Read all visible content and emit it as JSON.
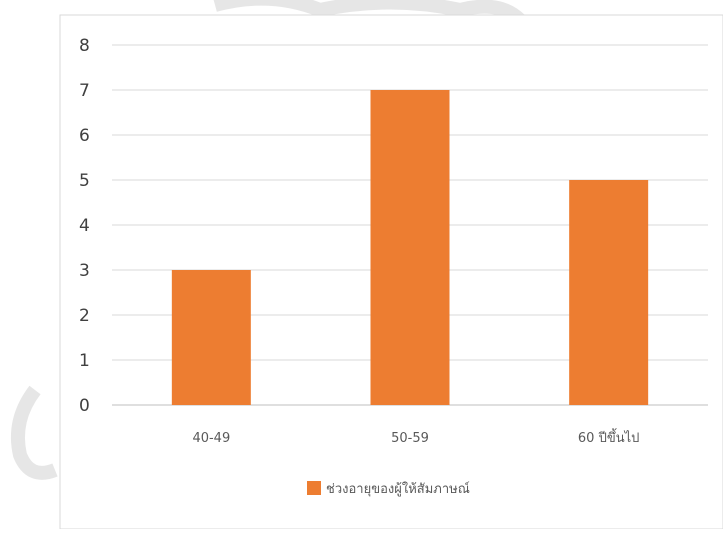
{
  "chart_data": {
    "type": "bar",
    "categories": [
      "40-49",
      "50-59",
      "60 ปีขึ้นไป"
    ],
    "series": [
      {
        "name": "ช่วงอายุของผู้ให้สัมภาษณ์",
        "values": [
          3,
          7,
          5
        ],
        "color": "#ED7D31"
      }
    ],
    "yticks": [
      "0",
      "1",
      "2",
      "3",
      "4",
      "5",
      "6",
      "7",
      "8"
    ],
    "ylim": [
      0,
      8
    ],
    "grid": true,
    "legend_position": "bottom"
  }
}
